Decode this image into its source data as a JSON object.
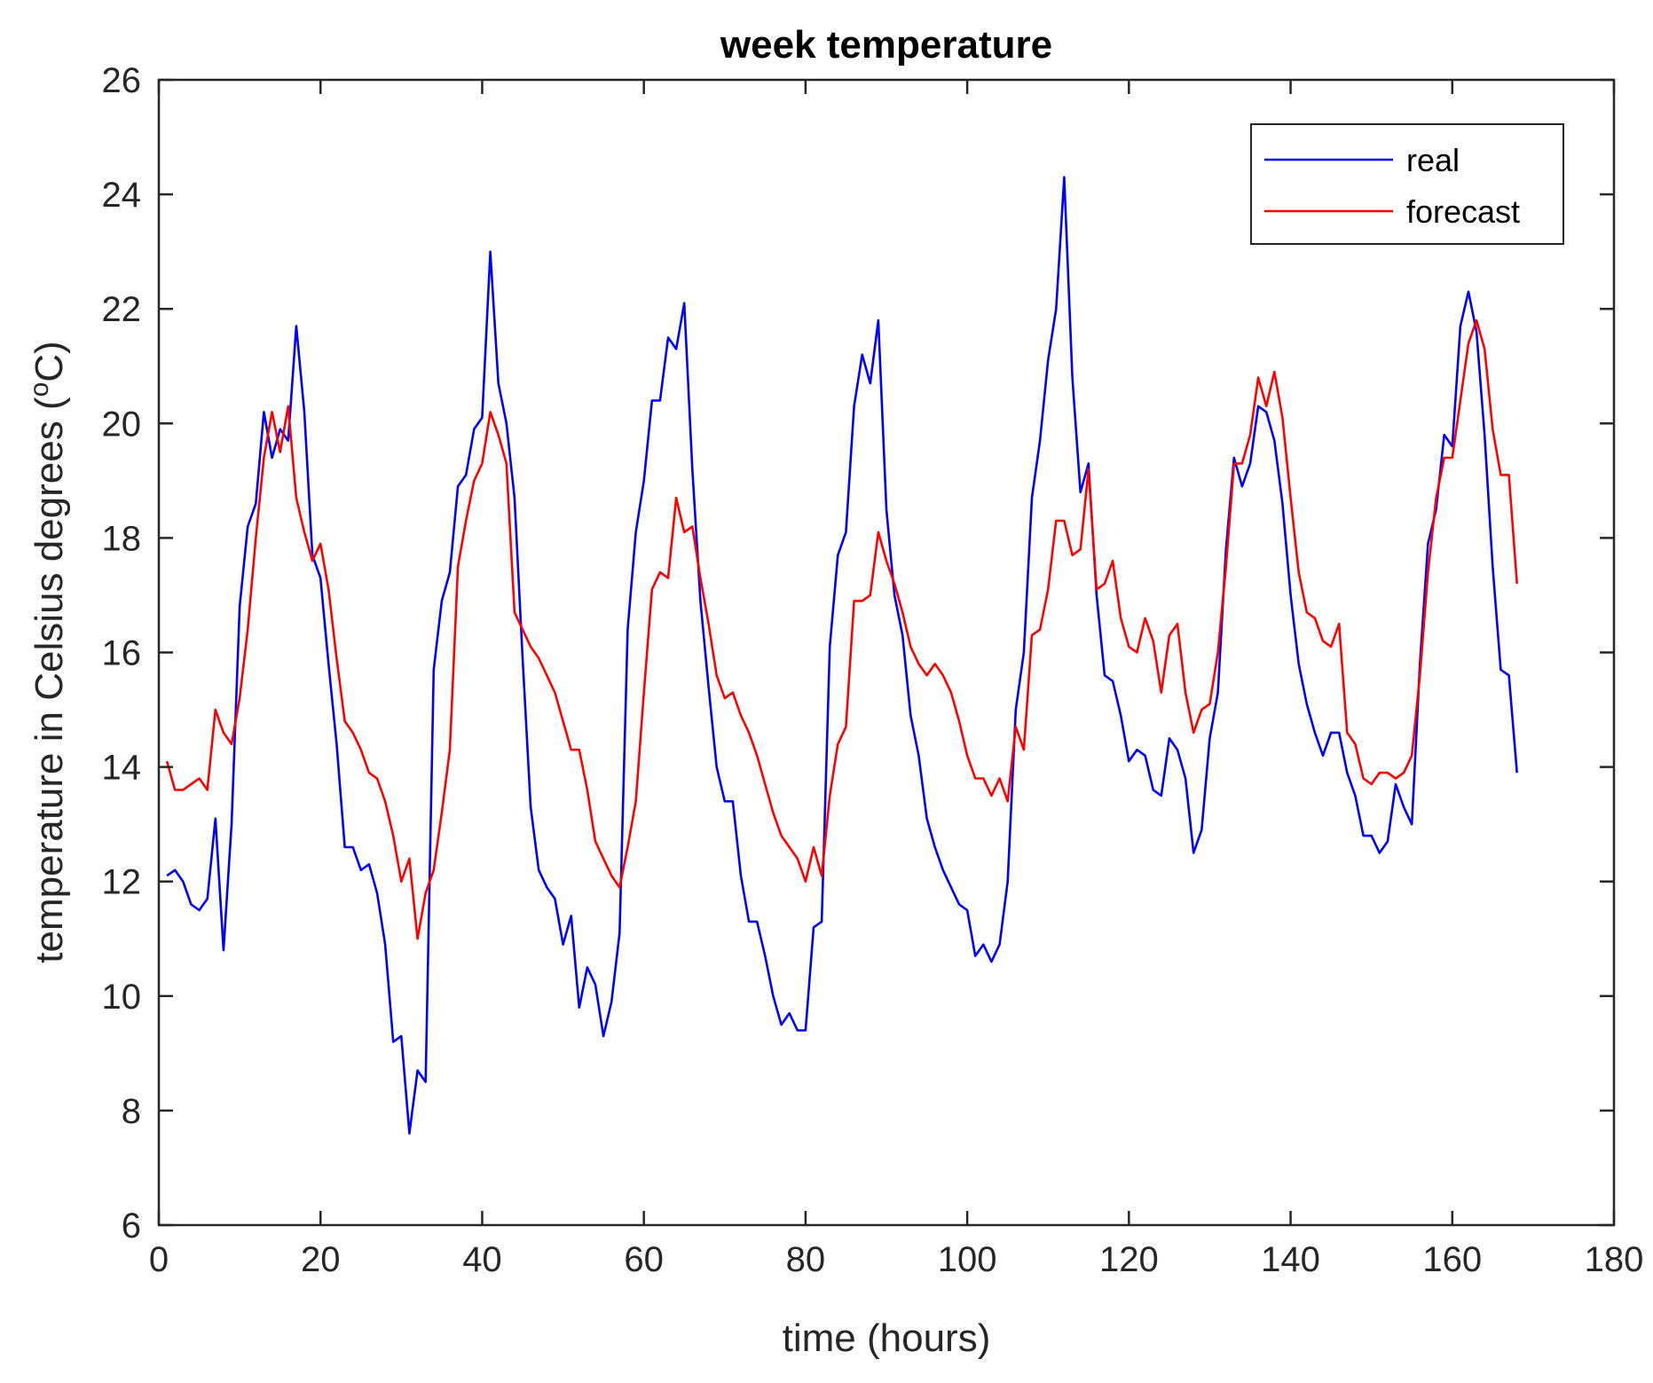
{
  "chart_data": {
    "type": "line",
    "title": "week temperature",
    "xlabel": "time (hours)",
    "ylabel_prefix": "temperature in Celsius degrees (",
    "ylabel_degree": "o",
    "ylabel_suffix": "C)",
    "xlim": [
      0,
      180
    ],
    "ylim": [
      6,
      26
    ],
    "xticks": [
      "0",
      "20",
      "40",
      "60",
      "80",
      "100",
      "120",
      "140",
      "160",
      "180"
    ],
    "yticks": [
      "6",
      "8",
      "10",
      "12",
      "14",
      "16",
      "18",
      "20",
      "22",
      "24",
      "26"
    ],
    "grid": false,
    "legend_position": "top-right",
    "series": [
      {
        "name": "real",
        "color": "#0000ff",
        "x": [
          1,
          2,
          3,
          4,
          5,
          6,
          7,
          8,
          9,
          10,
          11,
          12,
          13,
          14,
          15,
          16,
          17,
          18,
          19,
          20,
          21,
          22,
          23,
          24,
          25,
          26,
          27,
          28,
          29,
          30,
          31,
          32,
          33,
          34,
          35,
          36,
          37,
          38,
          39,
          40,
          41,
          42,
          43,
          44,
          45,
          46,
          47,
          48,
          49,
          50,
          51,
          52,
          53,
          54,
          55,
          56,
          57,
          58,
          59,
          60,
          61,
          62,
          63,
          64,
          65,
          66,
          67,
          68,
          69,
          70,
          71,
          72,
          73,
          74,
          75,
          76,
          77,
          78,
          79,
          80,
          81,
          82,
          83,
          84,
          85,
          86,
          87,
          88,
          89,
          90,
          91,
          92,
          93,
          94,
          95,
          96,
          97,
          98,
          99,
          100,
          101,
          102,
          103,
          104,
          105,
          106,
          107,
          108,
          109,
          110,
          111,
          112,
          113,
          114,
          115,
          116,
          117,
          118,
          119,
          120,
          121,
          122,
          123,
          124,
          125,
          126,
          127,
          128,
          129,
          130,
          131,
          132,
          133,
          134,
          135,
          136,
          137,
          138,
          139,
          140,
          141,
          142,
          143,
          144,
          145,
          146,
          147,
          148,
          149,
          150,
          151,
          152,
          153,
          154,
          155,
          156,
          157,
          158,
          159,
          160,
          161,
          162,
          163,
          164,
          165,
          166,
          167,
          168
        ],
        "values": [
          12.1,
          12.2,
          12.0,
          11.6,
          11.5,
          11.7,
          13.1,
          10.8,
          13.0,
          16.8,
          18.2,
          18.6,
          20.2,
          19.4,
          19.9,
          19.7,
          21.7,
          20.2,
          17.7,
          17.3,
          15.8,
          14.4,
          12.6,
          12.6,
          12.2,
          12.3,
          11.8,
          10.9,
          9.2,
          9.3,
          7.6,
          8.7,
          8.5,
          15.7,
          16.9,
          17.4,
          18.9,
          19.1,
          19.9,
          20.1,
          23.0,
          20.7,
          20.0,
          18.7,
          15.9,
          13.3,
          12.2,
          11.9,
          11.7,
          10.9,
          11.4,
          9.8,
          10.5,
          10.2,
          9.3,
          9.9,
          11.1,
          16.4,
          18.1,
          19.0,
          20.4,
          20.4,
          21.5,
          21.3,
          22.1,
          19.2,
          16.9,
          15.4,
          14.0,
          13.4,
          13.4,
          12.1,
          11.3,
          11.3,
          10.7,
          10.0,
          9.5,
          9.7,
          9.4,
          9.4,
          11.2,
          11.3,
          16.1,
          17.7,
          18.1,
          20.3,
          21.2,
          20.7,
          21.8,
          18.5,
          17.0,
          16.3,
          14.9,
          14.2,
          13.1,
          12.6,
          12.2,
          11.9,
          11.6,
          11.5,
          10.7,
          10.9,
          10.6,
          10.9,
          12.0,
          15.0,
          16.0,
          18.7,
          19.7,
          21.1,
          22.0,
          24.3,
          20.8,
          18.8,
          19.3,
          17.0,
          15.6,
          15.5,
          14.9,
          14.1,
          14.3,
          14.2,
          13.6,
          13.5,
          14.5,
          14.3,
          13.8,
          12.5,
          12.9,
          14.5,
          15.3,
          17.8,
          19.4,
          18.9,
          19.3,
          20.3,
          20.2,
          19.7,
          18.6,
          17.0,
          15.8,
          15.1,
          14.6,
          14.2,
          14.6,
          14.6,
          13.9,
          13.5,
          12.8,
          12.8,
          12.5,
          12.7,
          13.7,
          13.3,
          13.0,
          15.8,
          17.9,
          18.5,
          19.8,
          19.6,
          21.7,
          22.3,
          21.6,
          19.8,
          17.5,
          15.7,
          15.6,
          13.9
        ]
      },
      {
        "name": "forecast",
        "color": "#ff0000",
        "x": [
          1,
          2,
          3,
          4,
          5,
          6,
          7,
          8,
          9,
          10,
          11,
          12,
          13,
          14,
          15,
          16,
          17,
          18,
          19,
          20,
          21,
          22,
          23,
          24,
          25,
          26,
          27,
          28,
          29,
          30,
          31,
          32,
          33,
          34,
          35,
          36,
          37,
          38,
          39,
          40,
          41,
          42,
          43,
          44,
          45,
          46,
          47,
          48,
          49,
          50,
          51,
          52,
          53,
          54,
          55,
          56,
          57,
          58,
          59,
          60,
          61,
          62,
          63,
          64,
          65,
          66,
          67,
          68,
          69,
          70,
          71,
          72,
          73,
          74,
          75,
          76,
          77,
          78,
          79,
          80,
          81,
          82,
          83,
          84,
          85,
          86,
          87,
          88,
          89,
          90,
          91,
          92,
          93,
          94,
          95,
          96,
          97,
          98,
          99,
          100,
          101,
          102,
          103,
          104,
          105,
          106,
          107,
          108,
          109,
          110,
          111,
          112,
          113,
          114,
          115,
          116,
          117,
          118,
          119,
          120,
          121,
          122,
          123,
          124,
          125,
          126,
          127,
          128,
          129,
          130,
          131,
          132,
          133,
          134,
          135,
          136,
          137,
          138,
          139,
          140,
          141,
          142,
          143,
          144,
          145,
          146,
          147,
          148,
          149,
          150,
          151,
          152,
          153,
          154,
          155,
          156,
          157,
          158,
          159,
          160,
          161,
          162,
          163,
          164,
          165,
          166,
          167,
          168
        ],
        "values": [
          14.1,
          13.6,
          13.6,
          13.7,
          13.8,
          13.6,
          15.0,
          14.6,
          14.4,
          15.2,
          16.4,
          18.0,
          19.4,
          20.2,
          19.5,
          20.3,
          18.7,
          18.1,
          17.6,
          17.9,
          17.1,
          15.9,
          14.8,
          14.6,
          14.3,
          13.9,
          13.8,
          13.4,
          12.8,
          12.0,
          12.4,
          11.0,
          11.8,
          12.2,
          13.2,
          14.3,
          17.5,
          18.3,
          19.0,
          19.3,
          20.2,
          19.8,
          19.3,
          16.7,
          16.4,
          16.1,
          15.9,
          15.6,
          15.3,
          14.8,
          14.3,
          14.3,
          13.6,
          12.7,
          12.4,
          12.1,
          11.9,
          12.6,
          13.4,
          15.3,
          17.1,
          17.4,
          17.3,
          18.7,
          18.1,
          18.2,
          17.3,
          16.5,
          15.6,
          15.2,
          15.3,
          14.9,
          14.6,
          14.2,
          13.7,
          13.2,
          12.8,
          12.6,
          12.4,
          12.0,
          12.6,
          12.1,
          13.5,
          14.4,
          14.7,
          16.9,
          16.9,
          17.0,
          18.1,
          17.6,
          17.2,
          16.7,
          16.1,
          15.8,
          15.6,
          15.8,
          15.6,
          15.3,
          14.8,
          14.2,
          13.8,
          13.8,
          13.5,
          13.8,
          13.4,
          14.7,
          14.3,
          16.3,
          16.4,
          17.1,
          18.3,
          18.3,
          17.7,
          17.8,
          19.2,
          17.1,
          17.2,
          17.6,
          16.6,
          16.1,
          16.0,
          16.6,
          16.2,
          15.3,
          16.3,
          16.5,
          15.3,
          14.6,
          15.0,
          15.1,
          16.0,
          17.5,
          19.3,
          19.3,
          19.8,
          20.8,
          20.3,
          20.9,
          20.1,
          18.7,
          17.4,
          16.7,
          16.6,
          16.2,
          16.1,
          16.5,
          14.6,
          14.4,
          13.8,
          13.7,
          13.9,
          13.9,
          13.8,
          13.9,
          14.2,
          15.6,
          17.4,
          18.7,
          19.4,
          19.4,
          20.4,
          21.4,
          21.8,
          21.3,
          19.9,
          19.1,
          19.1,
          17.2
        ]
      }
    ]
  }
}
